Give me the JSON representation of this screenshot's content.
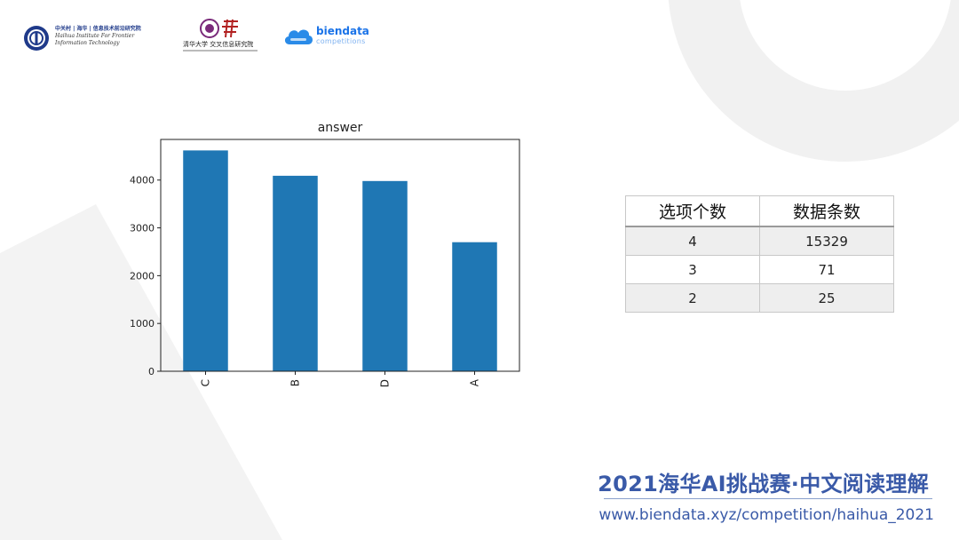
{
  "header": {
    "haihua_logo": {
      "cn": "中关村 | 海华 | 信息技术前沿研究院",
      "en1": "Haihua Institute For Frontier",
      "en2": "Information Technology"
    },
    "tsinghua_logo": {
      "name": "清华大学 交叉信息研究院"
    },
    "biendata_logo": {
      "brand": "biendata",
      "sub": "competitions"
    }
  },
  "chart_data": {
    "type": "bar",
    "title": "answer",
    "categories": [
      "C",
      "B",
      "D",
      "A"
    ],
    "values": [
      4620,
      4090,
      3980,
      2700
    ],
    "yticks": [
      0,
      1000,
      2000,
      3000,
      4000
    ],
    "ylim": [
      0,
      4850
    ],
    "bar_color": "#1f77b4",
    "grid": false
  },
  "table": {
    "headers": [
      "选项个数",
      "数据条数"
    ],
    "rows": [
      [
        "4",
        "15329"
      ],
      [
        "3",
        "71"
      ],
      [
        "2",
        "25"
      ]
    ]
  },
  "footer": {
    "title": "2021海华AI挑战赛·中文阅读理解",
    "url": "www.biendata.xyz/competition/haihua_2021"
  },
  "colors": {
    "accent": "#3a5aa8",
    "bar": "#1f77b4"
  }
}
